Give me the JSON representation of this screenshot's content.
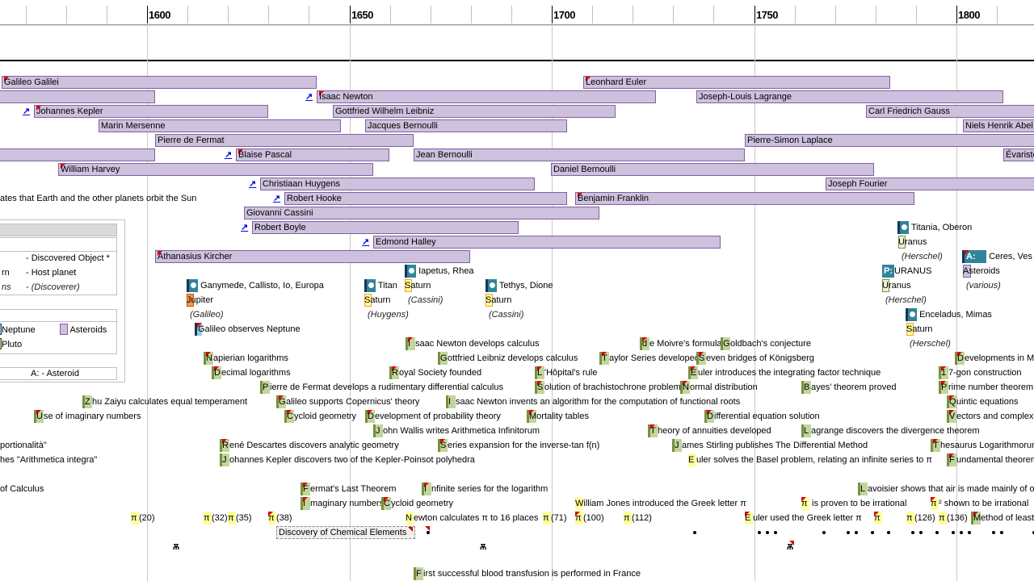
{
  "ruler": {
    "major_labels": [
      "1600",
      "1650",
      "1700",
      "1750",
      "1800"
    ]
  },
  "people": [
    {
      "name": "Galileo Galilei",
      "flag": true,
      "link": false
    },
    {
      "name": "",
      "flag": false,
      "link": false
    },
    {
      "name": "Isaac Newton",
      "flag": true,
      "link": true
    },
    {
      "name": "Leonhard Euler",
      "flag": true,
      "link": false
    },
    {
      "name": "Joseph-Louis Lagrange",
      "flag": false,
      "link": false
    },
    {
      "name": "Johannes Kepler",
      "flag": true,
      "link": true
    },
    {
      "name": "Gottfried Wilhelm Leibniz",
      "flag": false,
      "link": false
    },
    {
      "name": "Carl Friedrich Gauss",
      "flag": false,
      "link": false
    },
    {
      "name": "Marin Mersenne",
      "flag": false,
      "link": false
    },
    {
      "name": "Jacques Bernoulli",
      "flag": false,
      "link": false
    },
    {
      "name": "Niels Henrik Abel",
      "flag": false,
      "link": false
    },
    {
      "name": "Pierre de Fermat",
      "flag": false,
      "link": false
    },
    {
      "name": "Pierre-Simon Laplace",
      "flag": false,
      "link": false
    },
    {
      "name": "",
      "flag": false,
      "link": false
    },
    {
      "name": "Blaise Pascal",
      "flag": true,
      "link": true
    },
    {
      "name": "Jean Bernoulli",
      "flag": false,
      "link": false
    },
    {
      "name": "Évariste",
      "flag": false,
      "link": false
    },
    {
      "name": "William Harvey",
      "flag": true,
      "link": false
    },
    {
      "name": "Daniel Bernoulli",
      "flag": false,
      "link": false
    },
    {
      "name": "Christiaan Huygens",
      "flag": false,
      "link": true
    },
    {
      "name": "Joseph Fourier",
      "flag": false,
      "link": false
    },
    {
      "name": "Robert Hooke",
      "flag": false,
      "link": true
    },
    {
      "name": "Benjamin Franklin",
      "flag": true,
      "link": false
    },
    {
      "name": "Giovanni Cassini",
      "flag": false,
      "link": false
    },
    {
      "name": "Robert Boyle",
      "flag": false,
      "link": true
    },
    {
      "name": "Edmond Halley",
      "flag": false,
      "link": true
    },
    {
      "name": "Athanasius Kircher",
      "flag": true,
      "link": false
    }
  ],
  "copernicus_text": "ates that Earth and the other planets orbit the Sun",
  "legend": {
    "rows": [
      {
        "left": "",
        "right": "- Discovered Object *"
      },
      {
        "left": "rn",
        "right": "- Host planet"
      },
      {
        "left": "ns",
        "right": "- (Discoverer)"
      }
    ],
    "planets": [
      {
        "label": "Neptune",
        "color": "#92cddc"
      },
      {
        "label": "Asteroids",
        "color": "#cdc1dd"
      },
      {
        "label": "Pluto",
        "color": "#c4bd97"
      }
    ],
    "abbrev": "A:  -  Asteroid"
  },
  "discoveries": [
    {
      "objects": "Ganymede, Callisto, Io, Europa",
      "host": "Jupiter",
      "discoverer": "(Galileo)"
    },
    {
      "objects": "Titan",
      "host": "Saturn",
      "discoverer": "(Huygens)"
    },
    {
      "objects": "Iapetus, Rhea",
      "host": "Saturn",
      "discoverer": "(Cassini)"
    },
    {
      "objects": "Tethys, Dione",
      "host": "Saturn",
      "discoverer": "(Cassini)"
    },
    {
      "objects": "Titania, Oberon",
      "host": "Uranus",
      "discoverer": "(Herschel)"
    },
    {
      "objects": "URANUS",
      "badge": "P:",
      "host": "Uranus",
      "discoverer": "(Herschel)"
    },
    {
      "objects": "Ceres, Ves",
      "badge": "A:",
      "host": "Asteroids",
      "discoverer": "(various)"
    },
    {
      "objects": "Enceladus, Mimas",
      "host": "Saturn",
      "discoverer": "(Herschel)"
    }
  ],
  "neptune_event": "Galileo observes Neptune",
  "events": [
    "Isaac Newton develops calculus",
    "de Moivre's formula",
    "Goldbach's conjecture",
    "Napierian logarithms",
    "Gottfried Leibniz develops calculus",
    "Taylor Series developed",
    "Seven bridges of Königsberg",
    "Developments in Ma",
    "Decimal logarithms",
    "Royal Society founded",
    "L'Hôpital's rule",
    "Euler introduces the integrating factor technique",
    "17-gon construction",
    "Pierre de Fermat develops a rudimentary differential calculus",
    "Solution of brachistochrone problem",
    "Normal distribution",
    "Bayes' theorem proved",
    "Prime number theorem",
    "Zhu Zaiyu calculates equal temperament",
    "Galileo supports Copernicus' theory",
    "Isaac Newton invents an algorithm for the computation of functional roots",
    "Quintic equations",
    "Use of imaginary numbers",
    "Cycloid geometry",
    "Development of probability theory",
    "Mortality tables",
    "Differential equation solution",
    "Vectors and complex",
    "John Wallis writes Arithmetica Infinitorum",
    "Theory of annuities developed",
    "Lagrange discovers the divergence theorem",
    "portionalità\"",
    "René Descartes discovers analytic geometry",
    "Series expansion for the inverse-tan f(n)",
    "James Stirling publishes The Differential Method",
    "Thesaurus Logarithmorum",
    "hes \"Arithmetica integra\"",
    "Johannes Kepler discovers two of the Kepler-Poinsot polyhedra",
    "Euler solves the Basel problem, relating an infinite series to π",
    "Fundamental theorem",
    "of Calculus",
    "Fermat's Last Theorem",
    "Infinite series for the logarithm",
    "Lavoisier shows that air is made mainly of ox",
    "Imaginary numbers",
    "Cycloid geometry",
    "William Jones introduced the Greek letter π",
    "π is proven to be irrational",
    "π² shown to be irrational",
    "π(20)",
    "π(32)",
    "π(35)",
    "π(38)",
    "Newton calculates π to 16 places",
    "π(71)",
    "π(100)",
    "π(112)",
    "Euler used the Greek letter π",
    "π",
    "π(126)",
    "π(136)",
    "Method of least",
    "First successful blood transfusion is performed in France"
  ],
  "chemical_elements_label": "Discovery of Chemical Elements"
}
